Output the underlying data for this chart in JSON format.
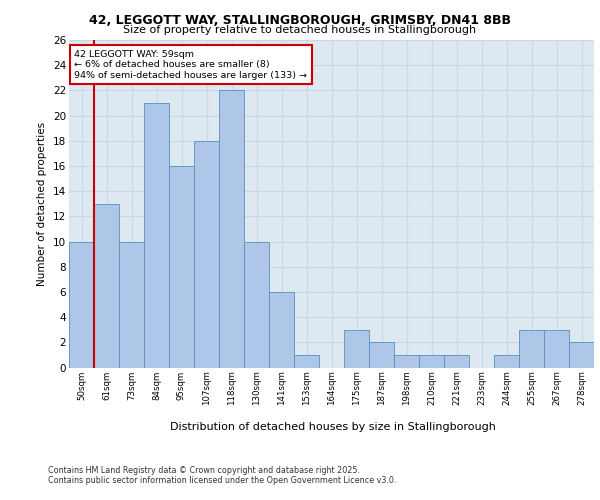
{
  "title1": "42, LEGGOTT WAY, STALLINGBOROUGH, GRIMSBY, DN41 8BB",
  "title2": "Size of property relative to detached houses in Stallingborough",
  "xlabel": "Distribution of detached houses by size in Stallingborough",
  "ylabel": "Number of detached properties",
  "footer1": "Contains HM Land Registry data © Crown copyright and database right 2025.",
  "footer2": "Contains public sector information licensed under the Open Government Licence v3.0.",
  "annotation_title": "42 LEGGOTT WAY: 59sqm",
  "annotation_line1": "← 6% of detached houses are smaller (8)",
  "annotation_line2": "94% of semi-detached houses are larger (133) →",
  "categories": [
    "50sqm",
    "61sqm",
    "73sqm",
    "84sqm",
    "95sqm",
    "107sqm",
    "118sqm",
    "130sqm",
    "141sqm",
    "153sqm",
    "164sqm",
    "175sqm",
    "187sqm",
    "198sqm",
    "210sqm",
    "221sqm",
    "233sqm",
    "244sqm",
    "255sqm",
    "267sqm",
    "278sqm"
  ],
  "values": [
    10,
    13,
    10,
    21,
    16,
    18,
    22,
    10,
    6,
    1,
    0,
    3,
    2,
    1,
    1,
    1,
    0,
    1,
    3,
    3,
    2
  ],
  "bar_color": "#aec6e8",
  "bar_edge_color": "#5a8fc0",
  "vline_color": "#cc0000",
  "annotation_box_color": "#cc0000",
  "ylim": [
    0,
    26
  ],
  "yticks": [
    0,
    2,
    4,
    6,
    8,
    10,
    12,
    14,
    16,
    18,
    20,
    22,
    24,
    26
  ],
  "grid_color": "#c8d8e8",
  "background_color": "#dde8f0"
}
